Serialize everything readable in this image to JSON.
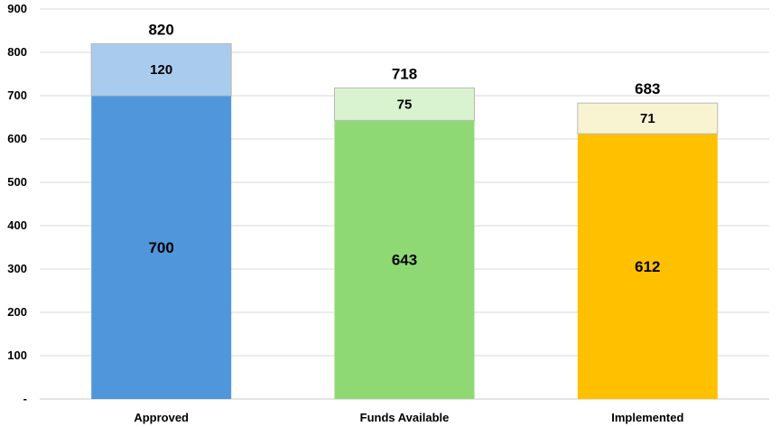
{
  "chart_data": {
    "type": "bar",
    "stacked": true,
    "categories": [
      "Approved",
      "Funds Available",
      "Implemented"
    ],
    "series": [
      {
        "values": [
          700,
          643,
          612
        ],
        "colors": [
          "#5096DB",
          "#8FD975",
          "#FFC000"
        ]
      },
      {
        "values": [
          120,
          75,
          71
        ],
        "colors": [
          "#A9CCEE",
          "#D9F3D1",
          "#F8F3D1"
        ]
      }
    ],
    "totals": [
      820,
      718,
      683
    ],
    "yticks": [
      "-",
      "100",
      "200",
      "300",
      "400",
      "500",
      "600",
      "700",
      "800",
      "900"
    ],
    "ylim": [
      0,
      900
    ],
    "grid": true,
    "legend": "none",
    "title": "",
    "xlabel": "",
    "ylabel": ""
  }
}
